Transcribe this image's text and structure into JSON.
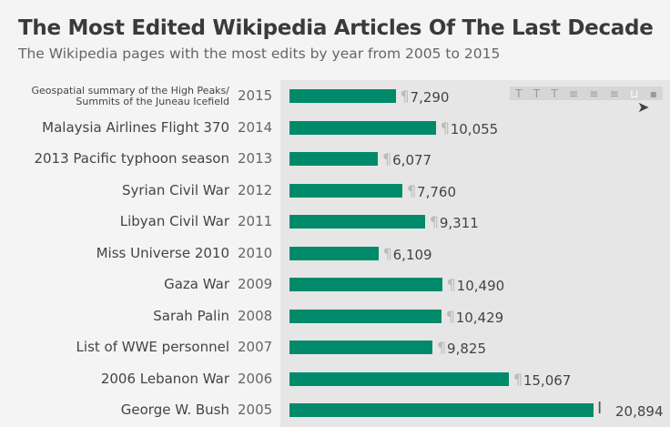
{
  "chart_data": {
    "type": "bar",
    "title": "The Most Edited Wikipedia Articles Of The Last Decade",
    "subtitle": "The Wikipedia pages with the most edits by year from 2005 to 2015",
    "categories": [
      "Geospatial summary of the High Peaks/ Summits of the Juneau Icefield",
      "Malaysia Airlines Flight 370",
      "2013 Pacific typhoon season",
      "Syrian Civil War",
      "Libyan Civil War",
      "Miss Universe 2010",
      "Gaza War",
      "Sarah Palin",
      "List of WWE personnel",
      "2006 Lebanon War",
      "George W. Bush"
    ],
    "years": [
      "2015",
      "2014",
      "2013",
      "2012",
      "2011",
      "2010",
      "2009",
      "2008",
      "2007",
      "2006",
      "2005"
    ],
    "values": [
      7290,
      10055,
      6077,
      7760,
      9311,
      6109,
      10490,
      10429,
      9825,
      15067,
      20894
    ],
    "value_labels": [
      "7,290",
      "10,055",
      "6,077",
      "7,760",
      "9,311",
      "6,109",
      "10,490",
      "10,429",
      "9,825",
      "15,067",
      "20,894"
    ],
    "xlim": [
      0,
      20894
    ],
    "color": "#008a6a"
  },
  "toolbar": {
    "icons": [
      "text-bold-icon",
      "text-italic-icon",
      "text-normal-icon",
      "align-left-icon",
      "align-center-icon",
      "align-right-icon",
      "save-icon",
      "delete-icon"
    ]
  }
}
